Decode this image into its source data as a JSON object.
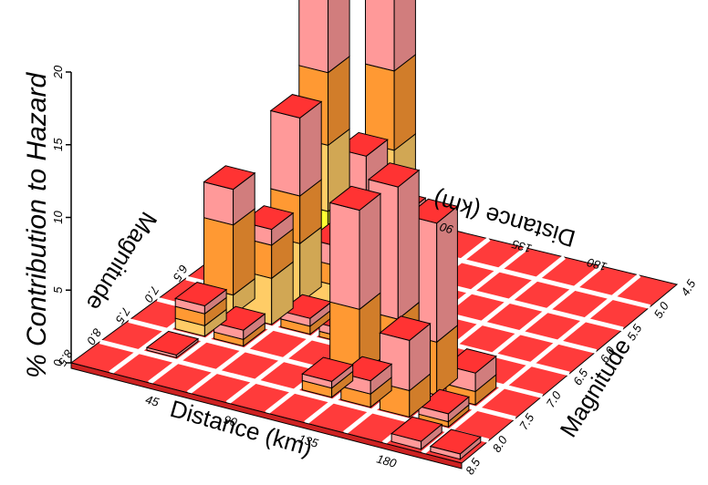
{
  "chart_data": {
    "type": "bar3d",
    "ylabel": "% Contribution to Hazard",
    "xlabel": "Distance (km)",
    "zlabel": "Magnitude",
    "x_ticks": [
      "45",
      "90",
      "135",
      "180"
    ],
    "x_ticks_back": [
      "90",
      "135",
      "180"
    ],
    "y_ticks": [
      "0",
      "5",
      "10",
      "15",
      "20"
    ],
    "z_ticks_right": [
      "4.5",
      "5.0",
      "5.5",
      "6.0",
      "6.5",
      "7.0",
      "7.5",
      "8.0",
      "8.5"
    ],
    "z_ticks_left": [
      "6.5",
      "7.0",
      "7.5",
      "8.0",
      "8.5"
    ],
    "xlim": [
      0,
      225
    ],
    "zlim": [
      4.5,
      8.5
    ],
    "ylim": [
      0,
      20
    ],
    "distance_bins": [
      0,
      22.5,
      45,
      67.5,
      90,
      112.5,
      135,
      157.5,
      180,
      202.5,
      225
    ],
    "magnitude_bins": [
      4.5,
      5.0,
      5.5,
      6.0,
      6.5,
      7.0,
      7.5,
      8.0,
      8.5
    ],
    "colors": {
      "floor": "#ff3b3b",
      "gridline": "#ffffff",
      "outline": "#000000",
      "top": "#ff3333",
      "band_epsilon": [
        "#66ff66",
        "#ffff33",
        "#ffcc66",
        "#ff9933",
        "#ff9999"
      ]
    },
    "bars": [
      {
        "dist_bin": 1,
        "mag_bin": 4,
        "total": 9.5,
        "stack": [
          1.5,
          5.3,
          2.7
        ]
      },
      {
        "dist_bin": 1,
        "mag_bin": 5,
        "total": 2.3,
        "stack": [
          0.8,
          0.9,
          0.6
        ]
      },
      {
        "dist_bin": 1,
        "mag_bin": 6,
        "total": 0.2,
        "stack": [
          0.2
        ]
      },
      {
        "dist_bin": 2,
        "mag_bin": 2,
        "total": 21.5,
        "stack": [
          5.3,
          5.0,
          5.5,
          5.7
        ]
      },
      {
        "dist_bin": 2,
        "mag_bin": 3,
        "total": 14.0,
        "stack": [
          4.5,
          3.6,
          5.9
        ]
      },
      {
        "dist_bin": 2,
        "mag_bin": 4,
        "total": 7.2,
        "stack": [
          3.5,
          2.5,
          1.2
        ]
      },
      {
        "dist_bin": 2,
        "mag_bin": 5,
        "total": 1.2,
        "stack": [
          0.5,
          0.7
        ]
      },
      {
        "dist_bin": 3,
        "mag_bin": 1,
        "total": 20.5,
        "stack": [
          9.0,
          6.0,
          5.5
        ]
      },
      {
        "dist_bin": 3,
        "mag_bin": 2,
        "total": 10.2,
        "stack": [
          4.0,
          3.2,
          3.0
        ]
      },
      {
        "dist_bin": 3,
        "mag_bin": 3,
        "total": 5.0,
        "stack": [
          2.0,
          1.5,
          1.5
        ]
      },
      {
        "dist_bin": 3,
        "mag_bin": 4,
        "total": 1.2,
        "stack": [
          0.6,
          0.6
        ]
      },
      {
        "dist_bin": 4,
        "mag_bin": 2,
        "total": 6.5,
        "stack": [
          2.0,
          4.5
        ]
      },
      {
        "dist_bin": 4,
        "mag_bin": 3,
        "total": 4.5,
        "stack": [
          1.5,
          3.0
        ]
      },
      {
        "dist_bin": 4,
        "mag_bin": 4,
        "total": 1.0,
        "stack": [
          0.4,
          0.6
        ]
      },
      {
        "dist_bin": 5,
        "mag_bin": 5,
        "total": 12.5,
        "stack": [
          5.0,
          7.5
        ]
      },
      {
        "dist_bin": 5,
        "mag_bin": 6,
        "total": 1.2,
        "stack": [
          0.7,
          0.5
        ]
      },
      {
        "dist_bin": 6,
        "mag_bin": 5,
        "total": 15.0,
        "stack": [
          5.0,
          10.0
        ]
      },
      {
        "dist_bin": 6,
        "mag_bin": 6,
        "total": 2.0,
        "stack": [
          1.0,
          1.0
        ]
      },
      {
        "dist_bin": 7,
        "mag_bin": 5,
        "total": 13.0,
        "stack": [
          4.0,
          9.0
        ]
      },
      {
        "dist_bin": 7,
        "mag_bin": 6,
        "total": 5.8,
        "stack": [
          2.0,
          3.8
        ]
      },
      {
        "dist_bin": 8,
        "mag_bin": 5,
        "total": 2.4,
        "stack": [
          1.0,
          1.4
        ]
      },
      {
        "dist_bin": 8,
        "mag_bin": 6,
        "total": 1.0,
        "stack": [
          0.4,
          0.6
        ]
      },
      {
        "dist_bin": 8,
        "mag_bin": 7,
        "total": 0.6,
        "stack": [
          0.6
        ]
      },
      {
        "dist_bin": 9,
        "mag_bin": 7,
        "total": 0.4,
        "stack": [
          0.4
        ]
      }
    ]
  }
}
